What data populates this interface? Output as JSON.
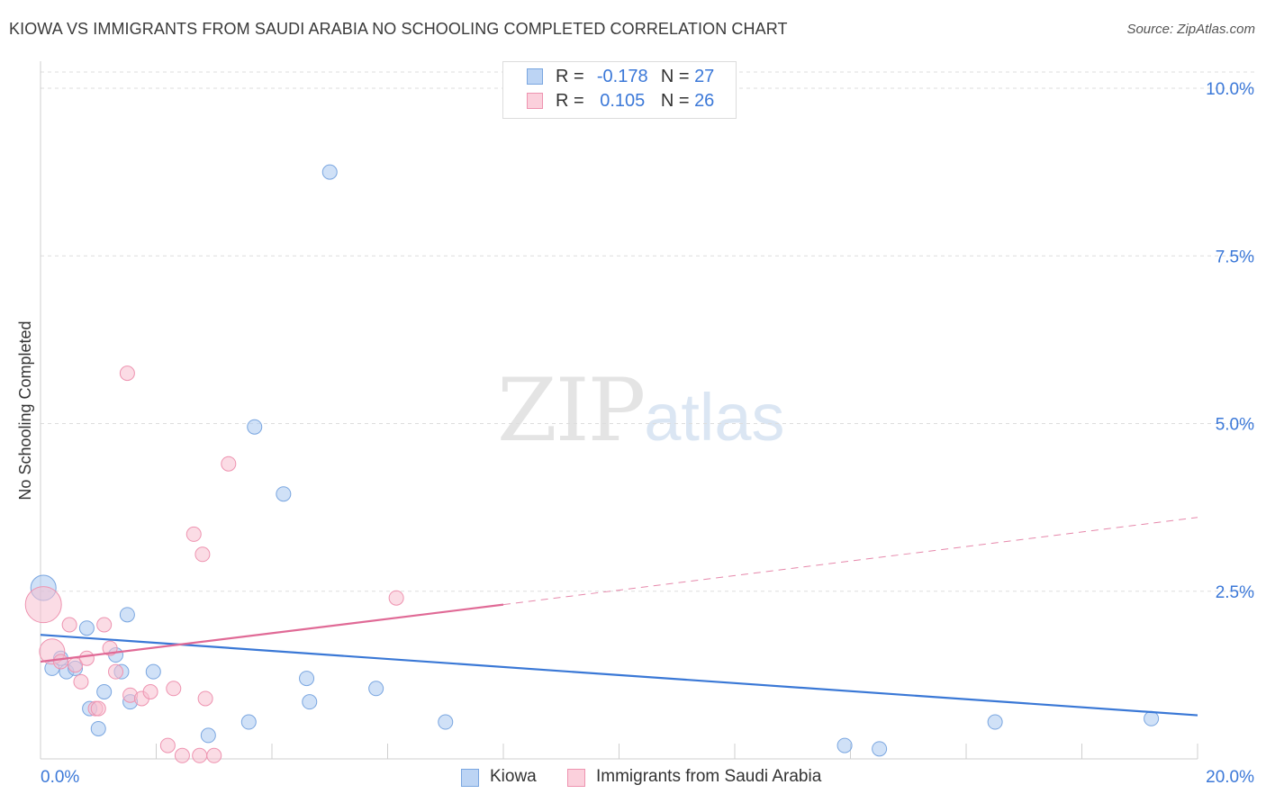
{
  "title": "KIOWA VS IMMIGRANTS FROM SAUDI ARABIA NO SCHOOLING COMPLETED CORRELATION CHART",
  "source": "Source: ZipAtlas.com",
  "watermark": {
    "zip": "ZIP",
    "atlas": "atlas"
  },
  "chart_data": {
    "type": "scatter",
    "ylabel": "No Schooling Completed",
    "xlabel": "",
    "xlim": [
      0,
      20
    ],
    "ylim": [
      0,
      10
    ],
    "x_tick_labels": [
      {
        "value": 0,
        "label": "0.0%"
      },
      {
        "value": 20,
        "label": "20.0%"
      }
    ],
    "y_tick_labels": [
      {
        "value": 2.5,
        "label": "2.5%"
      },
      {
        "value": 5.0,
        "label": "5.0%"
      },
      {
        "value": 7.5,
        "label": "7.5%"
      },
      {
        "value": 10.0,
        "label": "10.0%"
      }
    ],
    "legend": [
      {
        "name": "Kiowa",
        "r_label": "R = ",
        "r": "-0.178",
        "n_label": "N = ",
        "n": "27",
        "color": "#a9c8f0",
        "edge": "#7aa6e0"
      },
      {
        "name": "Immigrants from Saudi Arabia",
        "r_label": "R = ",
        "r": "0.105",
        "n_label": "N = ",
        "n": "26",
        "color": "#f7bfd0",
        "edge": "#ee93b0"
      }
    ],
    "series": [
      {
        "name": "Kiowa",
        "color": "#a9c8f0",
        "edge": "#7aa6e0",
        "trend": {
          "x0": 0,
          "y0": 1.85,
          "x1": 20,
          "y1": 0.65,
          "color": "#3a78d6"
        },
        "points": [
          {
            "x": 0.05,
            "y": 2.55,
            "s": 2
          },
          {
            "x": 0.2,
            "y": 1.35,
            "s": 1
          },
          {
            "x": 0.35,
            "y": 1.5,
            "s": 1
          },
          {
            "x": 0.45,
            "y": 1.3,
            "s": 1
          },
          {
            "x": 0.6,
            "y": 1.35,
            "s": 1
          },
          {
            "x": 0.8,
            "y": 1.95,
            "s": 1
          },
          {
            "x": 0.85,
            "y": 0.75,
            "s": 1
          },
          {
            "x": 1.0,
            "y": 0.45,
            "s": 1
          },
          {
            "x": 1.1,
            "y": 1.0,
            "s": 1
          },
          {
            "x": 1.3,
            "y": 1.55,
            "s": 1
          },
          {
            "x": 1.4,
            "y": 1.3,
            "s": 1
          },
          {
            "x": 1.5,
            "y": 2.15,
            "s": 1
          },
          {
            "x": 1.55,
            "y": 0.85,
            "s": 1
          },
          {
            "x": 1.95,
            "y": 1.3,
            "s": 1
          },
          {
            "x": 2.9,
            "y": 0.35,
            "s": 1
          },
          {
            "x": 3.6,
            "y": 0.55,
            "s": 1
          },
          {
            "x": 3.7,
            "y": 4.95,
            "s": 1
          },
          {
            "x": 4.2,
            "y": 3.95,
            "s": 1
          },
          {
            "x": 4.6,
            "y": 1.2,
            "s": 1
          },
          {
            "x": 4.65,
            "y": 0.85,
            "s": 1
          },
          {
            "x": 5.0,
            "y": 8.75,
            "s": 1
          },
          {
            "x": 5.8,
            "y": 1.05,
            "s": 1
          },
          {
            "x": 7.0,
            "y": 0.55,
            "s": 1
          },
          {
            "x": 13.9,
            "y": 0.2,
            "s": 1
          },
          {
            "x": 14.5,
            "y": 0.15,
            "s": 1
          },
          {
            "x": 16.5,
            "y": 0.55,
            "s": 1
          },
          {
            "x": 19.2,
            "y": 0.6,
            "s": 1
          }
        ]
      },
      {
        "name": "Immigrants from Saudi Arabia",
        "color": "#f7bfd0",
        "edge": "#ee93b0",
        "trend": {
          "x0": 0,
          "y0": 1.45,
          "x1": 8,
          "y1": 2.3,
          "ext_x1": 20,
          "ext_y1": 3.6,
          "color": "#e06a96"
        },
        "points": [
          {
            "x": 0.05,
            "y": 2.3,
            "s": 3
          },
          {
            "x": 0.2,
            "y": 1.6,
            "s": 2
          },
          {
            "x": 0.35,
            "y": 1.45,
            "s": 1
          },
          {
            "x": 0.5,
            "y": 2.0,
            "s": 1
          },
          {
            "x": 0.6,
            "y": 1.4,
            "s": 1
          },
          {
            "x": 0.7,
            "y": 1.15,
            "s": 1
          },
          {
            "x": 0.8,
            "y": 1.5,
            "s": 1
          },
          {
            "x": 0.95,
            "y": 0.75,
            "s": 1
          },
          {
            "x": 1.0,
            "y": 0.75,
            "s": 1
          },
          {
            "x": 1.1,
            "y": 2.0,
            "s": 1
          },
          {
            "x": 1.2,
            "y": 1.65,
            "s": 1
          },
          {
            "x": 1.3,
            "y": 1.3,
            "s": 1
          },
          {
            "x": 1.5,
            "y": 5.75,
            "s": 1
          },
          {
            "x": 1.55,
            "y": 0.95,
            "s": 1
          },
          {
            "x": 1.75,
            "y": 0.9,
            "s": 1
          },
          {
            "x": 1.9,
            "y": 1.0,
            "s": 1
          },
          {
            "x": 2.2,
            "y": 0.2,
            "s": 1
          },
          {
            "x": 2.3,
            "y": 1.05,
            "s": 1
          },
          {
            "x": 2.45,
            "y": 0.05,
            "s": 1
          },
          {
            "x": 2.65,
            "y": 3.35,
            "s": 1
          },
          {
            "x": 2.75,
            "y": 0.05,
            "s": 1
          },
          {
            "x": 2.8,
            "y": 3.05,
            "s": 1
          },
          {
            "x": 2.85,
            "y": 0.9,
            "s": 1
          },
          {
            "x": 3.0,
            "y": 0.05,
            "s": 1
          },
          {
            "x": 3.25,
            "y": 4.4,
            "s": 1
          },
          {
            "x": 6.15,
            "y": 2.4,
            "s": 1
          }
        ]
      }
    ]
  }
}
